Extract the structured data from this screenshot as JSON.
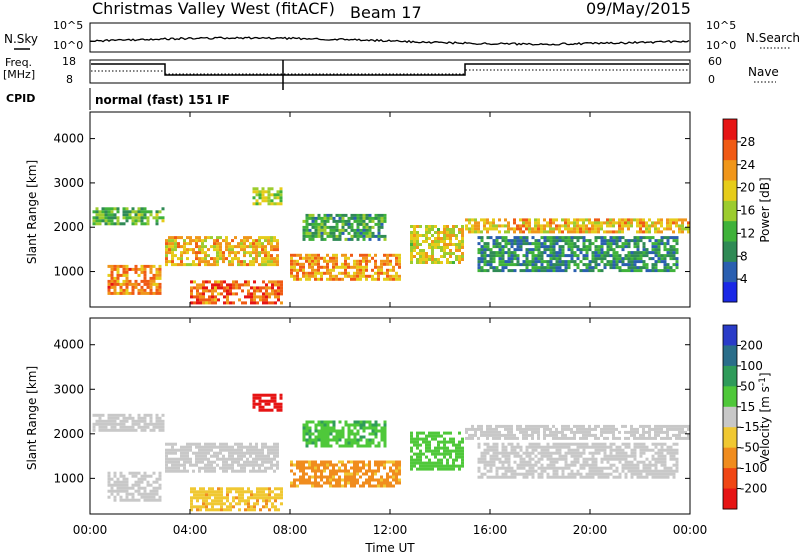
{
  "header": {
    "station": "Christmas Valley West (fitACF)",
    "beam": "Beam 17",
    "date": "09/May/2015"
  },
  "status_panel": {
    "nsky_label": "N.Sky",
    "nsearch_label": "N.Search",
    "freq_label": "Freq.",
    "freq_unit": "[MHz]",
    "nave_label": "Nave",
    "cpid_label": "CPID",
    "cpid_value": "normal (fast) 151 IF",
    "noise_ticks": [
      "10^5",
      "10^0"
    ],
    "freq_ticks": [
      "18",
      "8"
    ],
    "nave_ticks": [
      "60",
      "0"
    ]
  },
  "chart_data": [
    {
      "type": "heatmap",
      "quantity": "power",
      "ylabel": "Slant Range [km]",
      "xlabel": "Time UT",
      "x_ticks": [
        "00:00",
        "04:00",
        "08:00",
        "12:00",
        "16:00",
        "20:00",
        "00:00"
      ],
      "y_ticks": [
        1000,
        2000,
        3000,
        4000
      ],
      "ylim": [
        200,
        4600
      ],
      "xlim_hours": [
        0,
        24
      ],
      "colorbar": {
        "label": "Power [dB]",
        "ticks": [
          4,
          8,
          12,
          16,
          20,
          24,
          28
        ],
        "range": [
          0,
          32
        ],
        "colors": [
          "#1a28e6",
          "#2a5fb0",
          "#2f8a55",
          "#3fb23a",
          "#9ccc2e",
          "#e6cc1a",
          "#f0961a",
          "#f05a14",
          "#e61414"
        ]
      },
      "regions": [
        {
          "t0": 0.1,
          "t1": 2.9,
          "r0": 2050,
          "r1": 2450,
          "v": 13
        },
        {
          "t0": 0.7,
          "t1": 2.8,
          "r0": 500,
          "r1": 1150,
          "v": 24
        },
        {
          "t0": 3.0,
          "t1": 7.5,
          "r0": 1150,
          "r1": 1800,
          "v": 21
        },
        {
          "t0": 4.0,
          "t1": 7.7,
          "r0": 300,
          "r1": 800,
          "v": 26
        },
        {
          "t0": 6.5,
          "t1": 7.7,
          "r0": 2500,
          "r1": 2900,
          "v": 16
        },
        {
          "t0": 8.0,
          "t1": 12.4,
          "r0": 800,
          "r1": 1400,
          "v": 23
        },
        {
          "t0": 8.5,
          "t1": 11.8,
          "r0": 1700,
          "r1": 2300,
          "v": 11
        },
        {
          "t0": 12.8,
          "t1": 14.9,
          "r0": 1200,
          "r1": 2050,
          "v": 19
        },
        {
          "t0": 15.0,
          "t1": 23.9,
          "r0": 1900,
          "r1": 2200,
          "v": 21
        },
        {
          "t0": 15.5,
          "t1": 23.5,
          "r0": 1000,
          "r1": 1800,
          "v": 9
        }
      ]
    },
    {
      "type": "heatmap",
      "quantity": "velocity",
      "ylabel": "Slant Range [km]",
      "xlabel": "Time UT",
      "x_ticks": [
        "00:00",
        "04:00",
        "08:00",
        "12:00",
        "16:00",
        "20:00",
        "00:00"
      ],
      "y_ticks": [
        1000,
        2000,
        3000,
        4000
      ],
      "ylim": [
        200,
        4600
      ],
      "xlim_hours": [
        0,
        24
      ],
      "colorbar": {
        "label": "Velocity",
        "unit": "[m s",
        "unit_exp": "-1",
        "ticks": [
          200,
          100,
          50,
          15,
          -15,
          -50,
          -100,
          -200
        ],
        "colors": [
          "#2a3cc8",
          "#2a6e8a",
          "#2f9b5a",
          "#4fc83a",
          "#c8c8c8",
          "#f0c832",
          "#f08c1e",
          "#f04614",
          "#e61414"
        ]
      },
      "regions": [
        {
          "t0": 0.1,
          "t1": 2.9,
          "r0": 2050,
          "r1": 2450,
          "v": 0
        },
        {
          "t0": 0.7,
          "t1": 2.8,
          "r0": 500,
          "r1": 1150,
          "v": 0
        },
        {
          "t0": 3.0,
          "t1": 7.5,
          "r0": 1150,
          "r1": 1800,
          "v": 0
        },
        {
          "t0": 4.0,
          "t1": 7.7,
          "r0": 300,
          "r1": 800,
          "v": -40
        },
        {
          "t0": 6.5,
          "t1": 7.7,
          "r0": 2500,
          "r1": 2900,
          "v": -250
        },
        {
          "t0": 8.0,
          "t1": 12.4,
          "r0": 800,
          "r1": 1400,
          "v": -60
        },
        {
          "t0": 8.5,
          "t1": 11.8,
          "r0": 1700,
          "r1": 2300,
          "v": 40
        },
        {
          "t0": 12.8,
          "t1": 14.9,
          "r0": 1200,
          "r1": 2050,
          "v": 35
        },
        {
          "t0": 15.0,
          "t1": 23.9,
          "r0": 1900,
          "r1": 2200,
          "v": 0
        },
        {
          "t0": 15.5,
          "t1": 23.5,
          "r0": 1000,
          "r1": 1800,
          "v": 0
        }
      ]
    }
  ]
}
